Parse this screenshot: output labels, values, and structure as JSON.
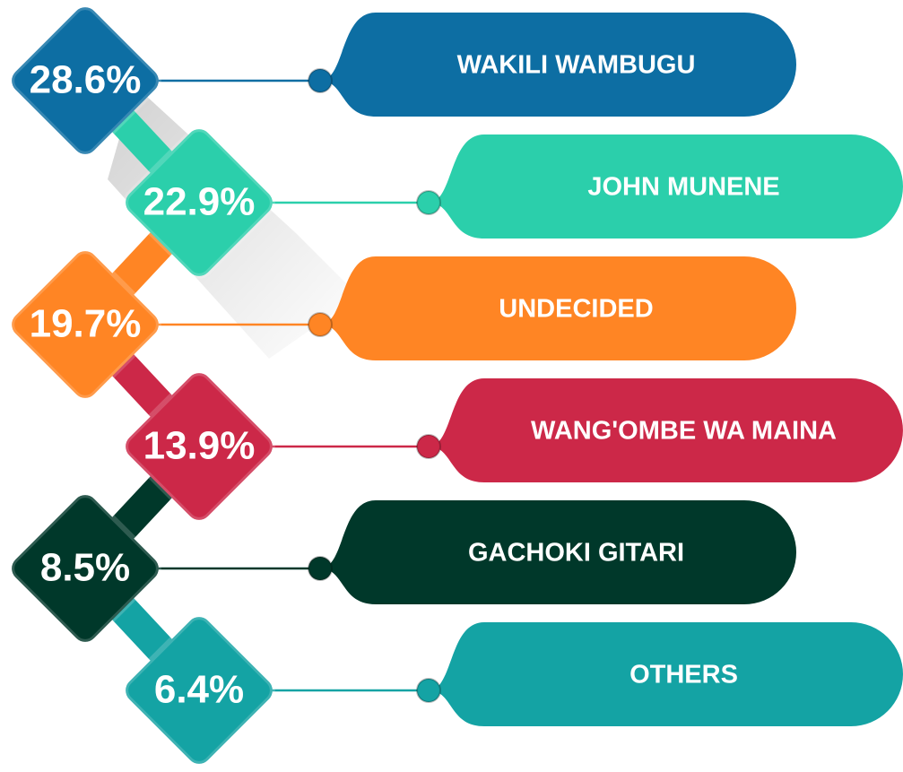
{
  "items": [
    {
      "value": "28.6%",
      "name": "WAKILI WAMBUGU",
      "color": "#0d6ea3"
    },
    {
      "value": "22.9%",
      "name": "JOHN MUNENE",
      "color": "#2bcfab"
    },
    {
      "value": "19.7%",
      "name": "UNDECIDED",
      "color": "#ff8524"
    },
    {
      "value": "13.9%",
      "name": "WANG'OMBE WA MAINA",
      "color": "#cc2848"
    },
    {
      "value": "8.5%",
      "name": "GACHOKI GITARI",
      "color": "#00382a"
    },
    {
      "value": "6.4%",
      "name": "OTHERS",
      "color": "#14a3a4"
    }
  ]
}
